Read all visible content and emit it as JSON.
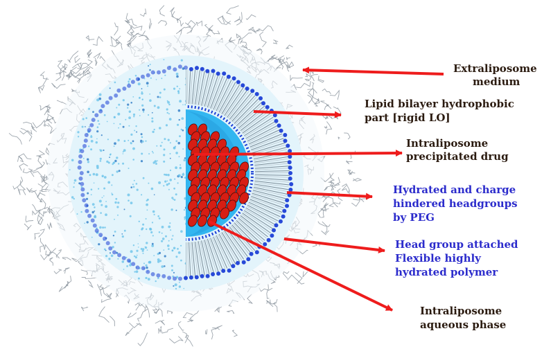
{
  "colors": {
    "label_dark": "#2b1b10",
    "label_blue": "#2c2ccc",
    "arrow": "#ee1c1c",
    "core_blue": "#33b6f0",
    "headgroup": "#1c3fd6",
    "drug_fill": "#d71e14",
    "halo": "#dff3fb",
    "dots": "#5dbde8",
    "scribble": "#9aa3ad"
  },
  "labels": [
    {
      "id": "extraliposome-medium",
      "lines": [
        "Extraliposome",
        "medium"
      ],
      "color": "dark"
    },
    {
      "id": "lipid-bilayer",
      "lines": [
        "Lipid bilayer hydrophobic",
        "part [rigid LO]"
      ],
      "color": "dark"
    },
    {
      "id": "precipitated-drug",
      "lines": [
        "Intraliposome",
        "precipitated drug"
      ],
      "color": "dark"
    },
    {
      "id": "hydrated-headgroups",
      "lines": [
        "Hydrated and charge",
        "hindered headgroups",
        "by PEG"
      ],
      "color": "blue"
    },
    {
      "id": "flexible-polymer",
      "lines": [
        "Head group attached",
        "Flexible highly",
        "hydrated polymer"
      ],
      "color": "blue"
    },
    {
      "id": "aqueous-phase",
      "lines": [
        "Intraliposome",
        "aqueous phase"
      ],
      "color": "dark"
    }
  ]
}
